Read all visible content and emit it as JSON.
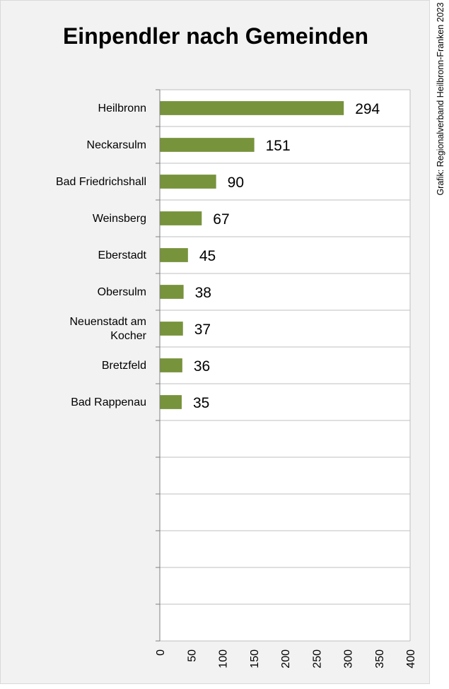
{
  "chart_data": {
    "type": "bar",
    "orientation": "horizontal",
    "title": "Einpendler nach Gemeinden",
    "categories": [
      "Heilbronn",
      "Neckarsulm",
      "Bad Friedrichshall",
      "Weinsberg",
      "Eberstadt",
      "Obersulm",
      "Neuenstadt am Kocher",
      "Bretzfeld",
      "Bad Rappenau"
    ],
    "category_lines": [
      [
        "Heilbronn"
      ],
      [
        "Neckarsulm"
      ],
      [
        "Bad Friedrichshall"
      ],
      [
        "Weinsberg"
      ],
      [
        "Eberstadt"
      ],
      [
        "Obersulm"
      ],
      [
        "Neuenstadt am",
        "Kocher"
      ],
      [
        "Bretzfeld"
      ],
      [
        "Bad Rappenau"
      ]
    ],
    "values": [
      294,
      151,
      90,
      67,
      45,
      38,
      37,
      36,
      35
    ],
    "value_labels": [
      "294",
      "151",
      "90",
      "67",
      "45",
      "38",
      "37",
      "36",
      "35"
    ],
    "xlim": [
      0,
      400
    ],
    "x_ticks": [
      "0",
      "50",
      "100",
      "150",
      "200",
      "250",
      "300",
      "350",
      "400"
    ],
    "empty_rows_after": 6,
    "bar_color": "#77933c",
    "grid": "horizontal",
    "legend": "none"
  },
  "credit": "Grafik: Regionalverband Heilbronn-Franken 2023"
}
